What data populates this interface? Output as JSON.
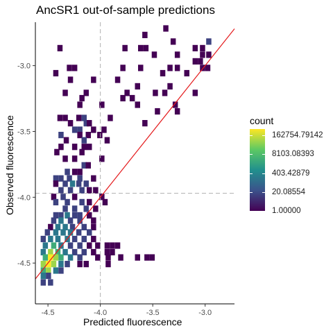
{
  "chart_data": {
    "type": "heatmap",
    "title": "AncSR1 out-of-sample predictions",
    "xlabel": "Predicted fluorescence",
    "ylabel": "Observed fluorescence",
    "xlim": [
      -4.62,
      -2.72
    ],
    "ylim": [
      -4.81,
      -2.67
    ],
    "x_ticks": [
      -4.5,
      -4.0,
      -3.5,
      -3.0
    ],
    "x_tick_labels": [
      "-4.5",
      "-4.0",
      "-3.5",
      "-3.0"
    ],
    "y_ticks": [
      -4.5,
      -4.0,
      -3.5,
      -3.0
    ],
    "y_tick_labels": [
      "-4.5",
      "-4.0",
      "-3.5",
      "-3.0"
    ],
    "bin_width": [
      0.0475,
      0.047
    ],
    "colorscale": "viridis (log count)",
    "colors": [
      "#440154",
      "#3b528b",
      "#21908d",
      "#5dc963",
      "#fde725"
    ],
    "vline_x": -4.0,
    "hline_y": -3.97,
    "diagonal_line": {
      "x0": -4.62,
      "y0": -4.62,
      "x1": -2.72,
      "y1": -2.72,
      "color": "#e41a1c"
    },
    "legend": {
      "title": "count",
      "labels": [
        "162754.79142",
        "8103.08393",
        "403.42879",
        "20.08554",
        "1.00000"
      ],
      "label_values": [
        12.0,
        9.0,
        6.0,
        3.0,
        0.0
      ],
      "log_max": 13.0
    },
    "bins": [
      [
        -3.4,
        -2.74,
        0
      ],
      [
        -3.6,
        -2.79,
        0
      ],
      [
        -2.99,
        -2.84,
        1
      ],
      [
        -3.05,
        -2.89,
        0
      ],
      [
        -3.12,
        -2.89,
        0
      ],
      [
        -3.33,
        -2.84,
        0
      ],
      [
        -3.59,
        -2.89,
        0
      ],
      [
        -3.64,
        -2.89,
        0
      ],
      [
        -4.41,
        -2.89,
        0
      ],
      [
        -3.79,
        -2.89,
        0
      ],
      [
        -3.29,
        -2.94,
        0
      ],
      [
        -3.51,
        -2.94,
        0
      ],
      [
        -3.05,
        -2.94,
        0
      ],
      [
        -2.99,
        -2.94,
        0
      ],
      [
        -3.07,
        -2.99,
        0
      ],
      [
        -3.12,
        -2.99,
        0
      ],
      [
        -3.29,
        -3.04,
        0
      ],
      [
        -3.36,
        -3.04,
        0
      ],
      [
        -3.64,
        -3.04,
        0
      ],
      [
        -3.81,
        -3.04,
        0
      ],
      [
        -3.05,
        -3.04,
        0
      ],
      [
        -4.32,
        -3.04,
        0
      ],
      [
        -4.27,
        -3.04,
        0
      ],
      [
        -3.0,
        -3.04,
        0
      ],
      [
        -4.45,
        -3.08,
        0
      ],
      [
        -3.43,
        -3.08,
        0
      ],
      [
        -3.2,
        -3.08,
        0
      ],
      [
        -3.86,
        -3.13,
        0
      ],
      [
        -4.09,
        -3.13,
        0
      ],
      [
        -4.31,
        -3.13,
        0
      ],
      [
        -3.67,
        -3.18,
        0
      ],
      [
        -3.36,
        -3.18,
        0
      ],
      [
        -4.16,
        -3.23,
        0
      ],
      [
        -3.41,
        -3.23,
        0
      ],
      [
        -3.12,
        -3.23,
        0
      ],
      [
        -3.5,
        -3.23,
        0
      ],
      [
        -3.77,
        -3.23,
        0
      ],
      [
        -4.36,
        -3.23,
        0
      ],
      [
        -4.2,
        -3.27,
        0
      ],
      [
        -3.72,
        -3.27,
        0
      ],
      [
        -3.81,
        -3.27,
        0
      ],
      [
        -4.01,
        -3.32,
        0
      ],
      [
        -4.22,
        -3.32,
        0
      ],
      [
        -3.67,
        -3.32,
        0
      ],
      [
        -3.31,
        -3.32,
        0
      ],
      [
        -3.29,
        -3.37,
        0
      ],
      [
        -3.48,
        -3.37,
        0
      ],
      [
        -4.36,
        -3.42,
        0
      ],
      [
        -4.23,
        -3.42,
        0
      ],
      [
        -4.18,
        -3.42,
        1
      ],
      [
        -3.93,
        -3.42,
        0
      ],
      [
        -4.41,
        -3.42,
        0
      ],
      [
        -4.31,
        -3.46,
        0
      ],
      [
        -4.16,
        -3.46,
        1
      ],
      [
        -4.13,
        -3.46,
        0
      ],
      [
        -3.6,
        -3.46,
        0
      ],
      [
        -4.27,
        -3.51,
        1
      ],
      [
        -4.22,
        -3.51,
        1
      ],
      [
        -4.09,
        -3.51,
        0
      ],
      [
        -3.99,
        -3.51,
        0
      ],
      [
        -4.03,
        -3.55,
        0
      ],
      [
        -4.4,
        -3.55,
        1
      ],
      [
        -4.22,
        -3.55,
        0
      ],
      [
        -4.14,
        -3.55,
        0
      ],
      [
        -4.35,
        -3.59,
        0
      ],
      [
        -4.18,
        -3.59,
        1
      ],
      [
        -3.96,
        -3.59,
        0
      ],
      [
        -4.4,
        -3.64,
        0
      ],
      [
        -4.27,
        -3.64,
        0
      ],
      [
        -4.18,
        -3.64,
        0
      ],
      [
        -4.13,
        -3.64,
        0
      ],
      [
        -4.2,
        -3.68,
        0
      ],
      [
        -4.44,
        -3.68,
        0
      ],
      [
        -4.01,
        -3.73,
        0
      ],
      [
        -4.27,
        -3.73,
        0
      ],
      [
        -4.36,
        -3.73,
        0
      ],
      [
        -4.18,
        -3.78,
        1
      ],
      [
        -4.14,
        -3.78,
        0
      ],
      [
        -4.22,
        -3.83,
        0
      ],
      [
        -4.34,
        -3.83,
        1
      ],
      [
        -4.27,
        -3.83,
        0
      ],
      [
        -4.45,
        -3.88,
        1
      ],
      [
        -4.4,
        -3.88,
        1
      ],
      [
        -4.32,
        -3.88,
        1
      ],
      [
        -4.22,
        -3.88,
        1
      ],
      [
        -4.09,
        -3.88,
        0
      ],
      [
        -4.16,
        -3.92,
        1
      ],
      [
        -4.29,
        -3.92,
        2
      ],
      [
        -4.36,
        -3.92,
        1
      ],
      [
        -4.23,
        -3.92,
        1
      ],
      [
        -4.45,
        -3.92,
        0
      ],
      [
        -4.4,
        -3.97,
        1
      ],
      [
        -4.31,
        -3.97,
        1
      ],
      [
        -4.2,
        -3.97,
        1
      ],
      [
        -4.13,
        -3.97,
        0
      ],
      [
        -4.07,
        -3.97,
        0
      ],
      [
        -4.47,
        -4.02,
        0
      ],
      [
        -4.38,
        -4.02,
        1
      ],
      [
        -4.27,
        -4.02,
        0
      ],
      [
        -4.01,
        -4.02,
        0
      ],
      [
        -4.45,
        -4.06,
        1
      ],
      [
        -4.34,
        -4.06,
        1
      ],
      [
        -4.2,
        -4.06,
        1
      ],
      [
        -4.13,
        -4.06,
        0
      ],
      [
        -3.98,
        -4.06,
        0
      ],
      [
        -4.36,
        -4.11,
        1
      ],
      [
        -4.27,
        -4.11,
        1
      ],
      [
        -4.16,
        -4.11,
        1
      ],
      [
        -4.07,
        -4.11,
        0
      ],
      [
        -4.45,
        -4.16,
        1
      ],
      [
        -4.4,
        -4.16,
        1
      ],
      [
        -4.34,
        -4.16,
        2
      ],
      [
        -4.27,
        -4.16,
        1
      ],
      [
        -4.22,
        -4.16,
        1
      ],
      [
        -4.13,
        -4.16,
        0
      ],
      [
        -4.47,
        -4.2,
        1
      ],
      [
        -4.4,
        -4.2,
        2
      ],
      [
        -4.31,
        -4.2,
        1
      ],
      [
        -4.22,
        -4.2,
        1
      ],
      [
        -4.09,
        -4.2,
        0
      ],
      [
        -4.5,
        -4.25,
        0
      ],
      [
        -4.43,
        -4.25,
        2
      ],
      [
        -4.36,
        -4.25,
        2
      ],
      [
        -4.29,
        -4.25,
        1
      ],
      [
        -4.18,
        -4.25,
        1
      ],
      [
        -4.09,
        -4.25,
        0
      ],
      [
        -4.53,
        -4.29,
        1
      ],
      [
        -4.45,
        -4.29,
        2
      ],
      [
        -4.38,
        -4.29,
        2
      ],
      [
        -4.31,
        -4.29,
        2
      ],
      [
        -4.23,
        -4.29,
        1
      ],
      [
        -4.13,
        -4.29,
        1
      ],
      [
        -4.57,
        -4.34,
        1
      ],
      [
        -4.5,
        -4.34,
        2
      ],
      [
        -4.43,
        -4.34,
        2
      ],
      [
        -4.34,
        -4.34,
        2
      ],
      [
        -4.27,
        -4.34,
        1
      ],
      [
        -4.18,
        -4.34,
        1
      ],
      [
        -4.09,
        -4.34,
        0
      ],
      [
        -4.55,
        -4.39,
        2
      ],
      [
        -4.47,
        -4.39,
        3
      ],
      [
        -4.4,
        -4.39,
        2
      ],
      [
        -4.31,
        -4.39,
        1
      ],
      [
        -4.22,
        -4.39,
        1
      ],
      [
        -4.13,
        -4.39,
        0
      ],
      [
        -4.57,
        -4.44,
        2
      ],
      [
        -4.5,
        -4.44,
        4
      ],
      [
        -4.43,
        -4.44,
        3
      ],
      [
        -4.36,
        -4.44,
        2
      ],
      [
        -4.27,
        -4.44,
        1
      ],
      [
        -4.18,
        -4.44,
        1
      ],
      [
        -4.55,
        -4.48,
        3
      ],
      [
        -4.5,
        -4.48,
        5
      ],
      [
        -4.45,
        -4.48,
        4
      ],
      [
        -4.4,
        -4.48,
        3
      ],
      [
        -4.31,
        -4.48,
        2
      ],
      [
        -4.22,
        -4.48,
        1
      ],
      [
        -4.57,
        -4.53,
        4
      ],
      [
        -4.52,
        -4.53,
        5
      ],
      [
        -4.47,
        -4.53,
        4
      ],
      [
        -4.4,
        -4.53,
        2
      ],
      [
        -4.34,
        -4.53,
        1
      ],
      [
        -4.57,
        -4.58,
        3
      ],
      [
        -4.52,
        -4.58,
        4
      ],
      [
        -4.45,
        -4.58,
        2
      ],
      [
        -4.4,
        -4.58,
        1
      ],
      [
        -4.57,
        -4.62,
        2
      ],
      [
        -4.52,
        -4.62,
        1
      ],
      [
        -4.57,
        -4.67,
        1
      ],
      [
        -4.5,
        -4.67,
        1
      ],
      [
        -3.95,
        -4.53,
        0
      ],
      [
        -3.91,
        -4.39,
        0
      ],
      [
        -3.96,
        -4.39,
        0
      ],
      [
        -3.86,
        -4.39,
        0
      ],
      [
        -3.83,
        -4.48,
        0
      ],
      [
        -3.67,
        -4.48,
        0
      ],
      [
        -3.58,
        -4.48,
        0
      ],
      [
        -3.53,
        -4.48,
        0
      ],
      [
        -3.95,
        -4.48,
        0
      ],
      [
        -4.05,
        -4.48,
        0
      ],
      [
        -3.96,
        -4.44,
        0
      ],
      [
        -3.91,
        -4.44,
        0
      ],
      [
        -4.22,
        -4.53,
        0
      ],
      [
        -4.16,
        -4.53,
        0
      ],
      [
        -4.09,
        -4.44,
        0
      ],
      [
        -4.05,
        -4.39,
        0
      ]
    ]
  }
}
